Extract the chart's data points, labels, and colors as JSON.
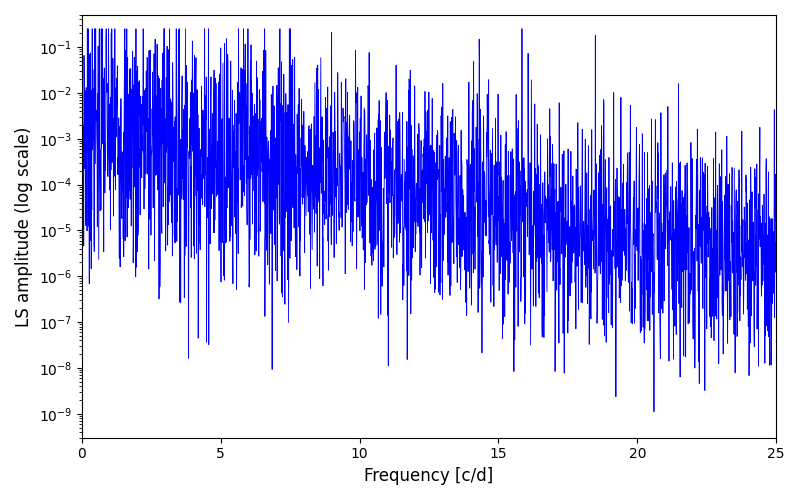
{
  "line_color": "#0000ff",
  "xlabel": "Frequency [c/d]",
  "ylabel": "LS amplitude (log scale)",
  "xlim": [
    0,
    25
  ],
  "ylim": [
    3e-10,
    0.5
  ],
  "xticks": [
    0,
    5,
    10,
    15,
    20,
    25
  ],
  "background_color": "#ffffff",
  "line_width": 0.6,
  "xlabel_fontsize": 12,
  "ylabel_fontsize": 12,
  "n_points": 2500,
  "freq_max": 25.0,
  "base_amplitude": 0.002,
  "decay_rate": 0.28,
  "noise_std_low": 1.5,
  "noise_std_high": 1.2,
  "transition_freq": 8.0,
  "random_seed": 7,
  "figsize": [
    8.0,
    5.0
  ],
  "dpi": 100
}
